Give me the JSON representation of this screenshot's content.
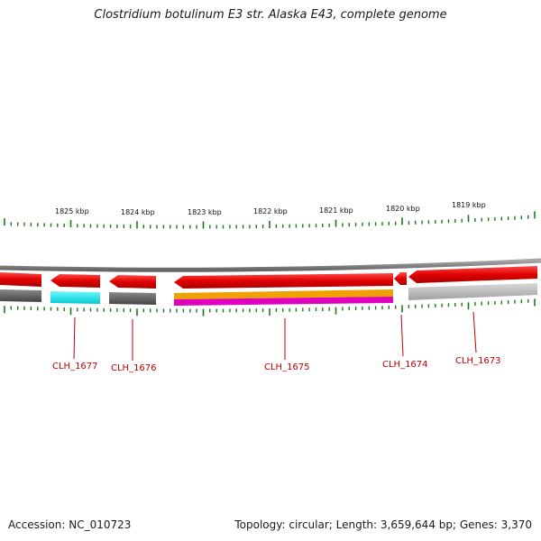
{
  "title": "Clostridium botulinum E3 str. Alaska E43, complete genome",
  "kbp_labels": [
    "1825 kbp",
    "1824 kbp",
    "1823 kbp",
    "1822 kbp",
    "1821 kbp",
    "1820 kbp",
    "1819 kbp"
  ],
  "genes": [
    {
      "id": "CLH_1677",
      "strand": "reverse"
    },
    {
      "id": "CLH_1676",
      "strand": "reverse"
    },
    {
      "id": "CLH_1675",
      "strand": "reverse"
    },
    {
      "id": "CLH_1674",
      "strand": "reverse"
    },
    {
      "id": "CLH_1673",
      "strand": "reverse"
    }
  ],
  "colors": {
    "gene": "#e00000",
    "backbone": "#808080",
    "tick": "#1a7a1a",
    "label": "#c00000",
    "cyan_feature": "#00e0e8",
    "dark_feature": "#555555",
    "orange_feature": "#f0a000",
    "magenta_feature": "#e000c0",
    "light_feature": "#b8b8b8"
  },
  "footer": {
    "accession": "Accession: NC_010723",
    "stats": "Topology: circular; Length: 3,659,644 bp; Genes: 3,370"
  }
}
